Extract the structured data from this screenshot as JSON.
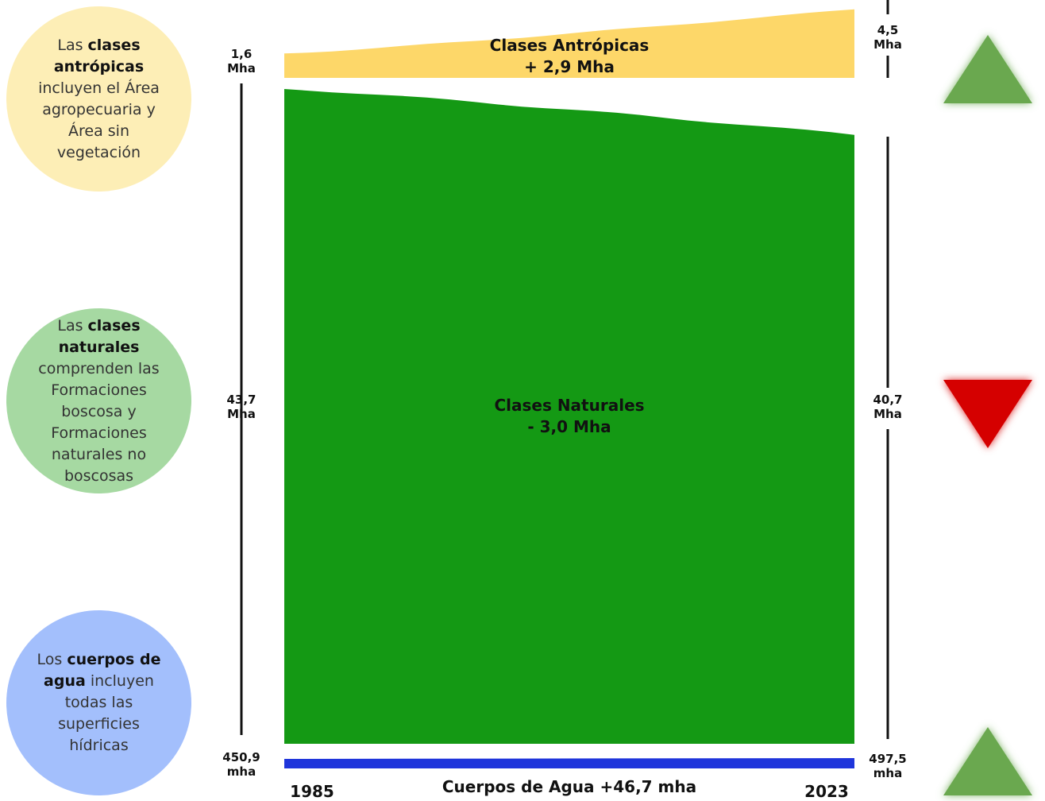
{
  "notes": {
    "antropicas": {
      "pre": "Las ",
      "bold": "clases antrópicas",
      "post": " incluyen el Área agropecuaria y Área sin vegetación"
    },
    "naturales": {
      "pre": "Las ",
      "bold": "clases naturales",
      "post": " comprenden las Formaciones boscosa y Formaciones naturales no boscosas"
    },
    "agua": {
      "pre": "Los ",
      "bold": "cuerpos de agua",
      "post": " incluyen todas las superficies hídricas"
    }
  },
  "chart_data": {
    "type": "area",
    "x": [
      1985,
      2023
    ],
    "series": [
      {
        "name": "Clases Antrópicas",
        "label_lines": [
          "Clases Antrópicas",
          "+ 2,9 Mha"
        ],
        "color": "#fdd769",
        "trend": "up",
        "start": {
          "value": 1.6,
          "unit": "Mha",
          "label": "1,6"
        },
        "end": {
          "value": 4.5,
          "unit": "Mha",
          "label": "4,5"
        }
      },
      {
        "name": "Clases Naturales",
        "label_lines": [
          "Clases Naturales",
          "- 3,0 Mha"
        ],
        "color": "#149914",
        "trend": "down",
        "start": {
          "value": 43.7,
          "unit": "Mha",
          "label": "43,7"
        },
        "end": {
          "value": 40.7,
          "unit": "Mha",
          "label": "40,7"
        }
      },
      {
        "name": "Cuerpos de Agua",
        "label_lines": [
          "Cuerpos de Agua +46,7 mha"
        ],
        "color": "#1f35db",
        "trend": "up",
        "start": {
          "value": 450.9,
          "unit": "mha",
          "label": "450,9"
        },
        "end": {
          "value": 497.5,
          "unit": "mha",
          "label": "497,5"
        }
      }
    ],
    "x_labels": [
      "1985",
      "2023"
    ],
    "trend_colors": {
      "up": "#6aa84f",
      "down": "#d50000"
    }
  }
}
